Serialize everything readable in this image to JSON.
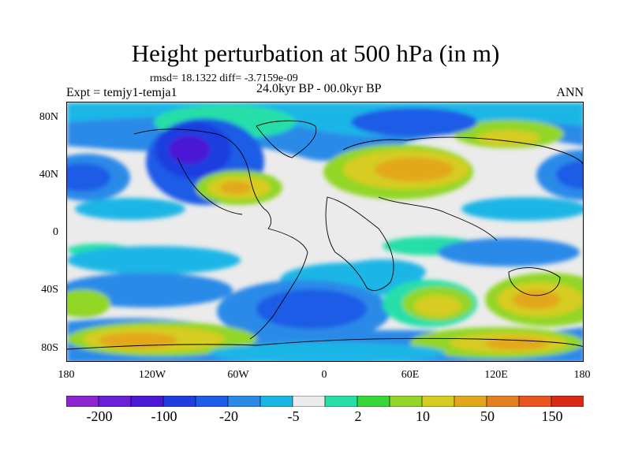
{
  "title": "Height perturbation at 500 hPa (in m)",
  "stats": "rmsd= 18.1322 diff= -3.7159e-09",
  "expt": "Expt = temjy1-temja1",
  "period": "24.0kyr BP - 00.0kyr BP",
  "season": "ANN",
  "axes": {
    "y_ticks": [
      "80N",
      "40N",
      "0",
      "40S",
      "80S"
    ],
    "x_ticks": [
      "180",
      "120W",
      "60W",
      "0",
      "60E",
      "120E",
      "180"
    ]
  },
  "colorbar": {
    "colors": [
      "#8c24cf",
      "#6b1fd6",
      "#4b18d6",
      "#1f3ee0",
      "#1e5ce6",
      "#2a8ae8",
      "#1ab6e6",
      "#ebebeb",
      "#27dfa8",
      "#37d63a",
      "#92d628",
      "#d6cc20",
      "#e3a71e",
      "#e67e22",
      "#e85520",
      "#d92a17"
    ],
    "labels": [
      "-200",
      "-100",
      "-20",
      "-5",
      "2",
      "10",
      "50",
      "150"
    ]
  }
}
